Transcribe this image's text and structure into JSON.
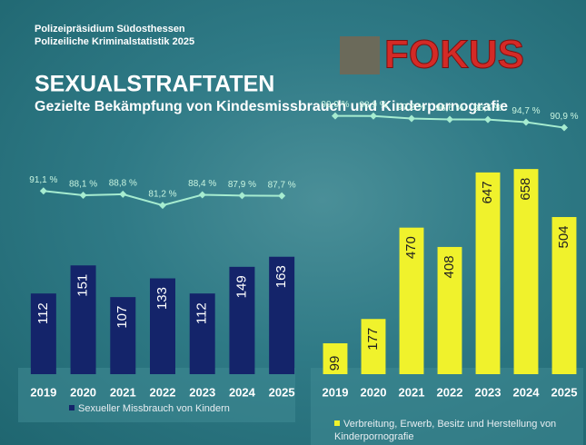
{
  "header": {
    "org": "Polizeipräsidium Südosthessen",
    "report": "Polizeiliche Kriminalstatistik 2025",
    "logo": "FOKUS",
    "title": "SEXUALSTRAFTATEN",
    "subtitle": "Gezielte Bekämpfung von Kindesmissbrauch und Kinderpornografie"
  },
  "chart_data": [
    {
      "type": "bar",
      "categories": [
        "2019",
        "2020",
        "2021",
        "2022",
        "2023",
        "2024",
        "2025"
      ],
      "ylim": [
        0,
        290
      ],
      "y2lim": [
        60,
        110
      ],
      "series": [
        {
          "name": "Sexueller Missbrauch von Kindern",
          "color": "#14246a",
          "values": [
            112,
            151,
            107,
            133,
            112,
            149,
            163
          ]
        },
        {
          "type": "line",
          "axis": "y2",
          "color": "#a6ecd0",
          "values": [
            91.1,
            88.1,
            88.8,
            81.2,
            88.4,
            87.9,
            87.7
          ],
          "value_labels": [
            "91,1 %",
            "88,1 %",
            "88,8 %",
            "81,2 %",
            "88,4 %",
            "87,9 %",
            "87,7 %"
          ]
        }
      ]
    },
    {
      "type": "bar",
      "categories": [
        "2019",
        "2020",
        "2021",
        "2022",
        "2023",
        "2024",
        "2025"
      ],
      "ylim": [
        0,
        670
      ],
      "y2lim": [
        60,
        110
      ],
      "series": [
        {
          "name": "Verbreitung, Erwerb, Besitz und Herstellung von Kinderpornografie",
          "color": "#f0f22c",
          "values": [
            99,
            177,
            470,
            408,
            647,
            658,
            504
          ]
        },
        {
          "type": "line",
          "axis": "y2",
          "color": "#a6ecd0",
          "values": [
            99.0,
            98.9,
            97.2,
            96.6,
            96.5,
            94.7,
            90.9
          ],
          "value_labels": [
            "99,0 %",
            "98,9 %",
            "97,2 %",
            "96,6 %",
            "96,5 %",
            "94,7 %",
            "90,9 %"
          ]
        }
      ]
    }
  ]
}
